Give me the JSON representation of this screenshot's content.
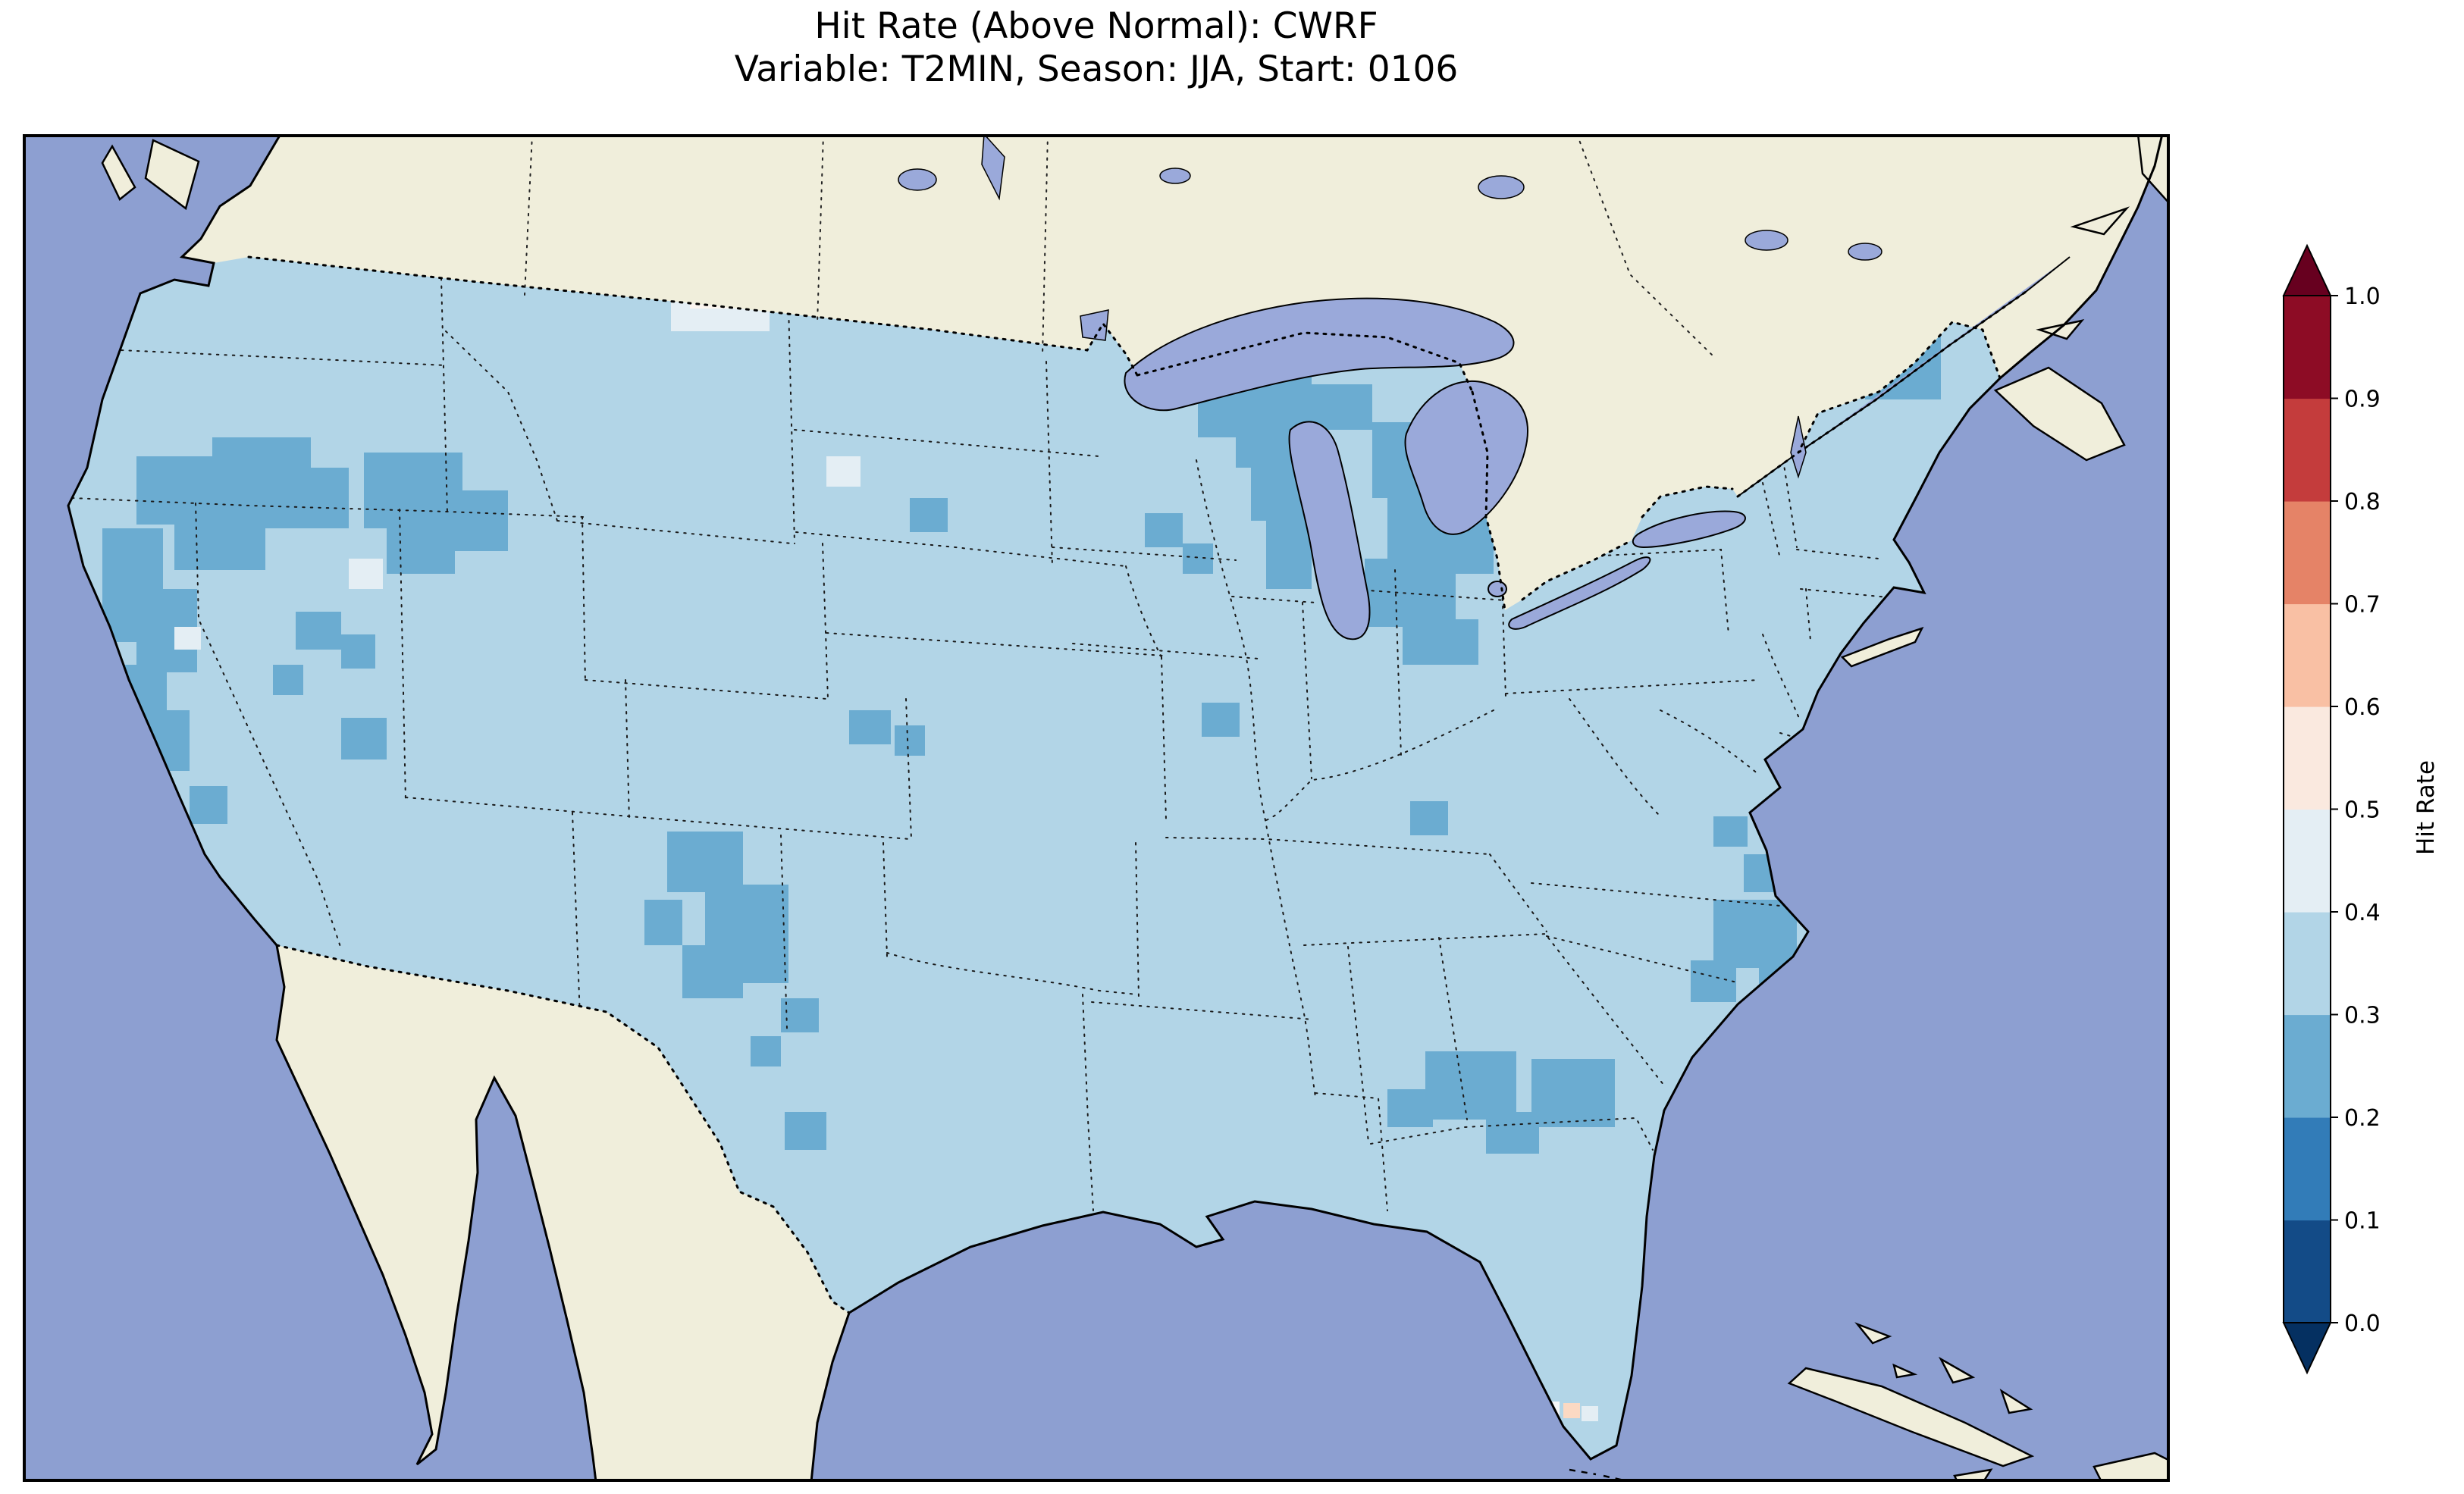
{
  "title": {
    "line1": "Hit Rate (Above Normal): CWRF",
    "line2": "Variable: T2MIN, Season: JJA, Start: 0106"
  },
  "colorbar": {
    "label": "Hit Rate",
    "ticks": [
      "1.0",
      "0.9",
      "0.8",
      "0.7",
      "0.6",
      "0.5",
      "0.4",
      "0.3",
      "0.2",
      "0.1",
      "0.0"
    ],
    "bin_colors_bottom_to_top": [
      "#134b87",
      "#327cb8",
      "#6bacd1",
      "#b2d5e7",
      "#e4eef4",
      "#fae9df",
      "#f9c0a4",
      "#e58367",
      "#c43c3c",
      "#8d0c25"
    ],
    "under_color": "#053061",
    "over_color": "#67001f"
  },
  "map": {
    "colors": {
      "ocean": "#8d9fd1",
      "land": "#f0eedb",
      "lake": "#9aa9da",
      "coastline": "#000000",
      "data_bin_03_04": "#b2d5e7",
      "data_bin_02_03": "#6bacd1",
      "data_bin_04_05": "#e4eef4",
      "data_bin_05_06": "#fbf5ef",
      "cell_peach": "#fbd9c3",
      "cell_white": "#f7f7f7"
    }
  },
  "chart_data": {
    "type": "heatmap",
    "title": "Hit Rate (Above Normal): CWRF",
    "subtitle": "Variable: T2MIN, Season: JJA, Start: 0106",
    "region": "Contiguous United States (gridded forecast verification map)",
    "colorbar": {
      "label": "Hit Rate",
      "range": [
        0.0,
        1.0
      ],
      "tick_step": 0.1,
      "extend": "both",
      "colormap": "RdBu_r, 10 discrete bins"
    },
    "dominant_value_bin": [
      0.3,
      0.4
    ],
    "regions": [
      {
        "area": "most of CONUS",
        "hit_rate": "0.3-0.4"
      },
      {
        "area": "eastern Oregon / SE Washington / central Idaho",
        "hit_rate": "0.2-0.3"
      },
      {
        "area": "Sierra Nevada / western Nevada",
        "hit_rate": "0.2-0.3"
      },
      {
        "area": "northern Minnesota and western Great Lakes",
        "hit_rate": "0.2-0.3"
      },
      {
        "area": "Michigan / Wisconsin around Lake Michigan",
        "hit_rate": "0.2-0.3"
      },
      {
        "area": "Adirondacks / northern New England / northern Maine",
        "hit_rate": "0.2-0.3"
      },
      {
        "area": "New Mexico and west Texas patches",
        "hit_rate": "0.2-0.3"
      },
      {
        "area": "coastal North Carolina",
        "hit_rate": "0.2-0.3"
      },
      {
        "area": "central Georgia and eastern Alabama patches",
        "hit_rate": "0.2-0.3"
      },
      {
        "area": "North Dakota small area",
        "hit_rate": "0.4-0.6"
      },
      {
        "area": "scattered single cells (NV, UT, SD, south Florida incl. one 0.6-0.7 peach cell)",
        "hit_rate": "0.4-0.7"
      }
    ]
  }
}
